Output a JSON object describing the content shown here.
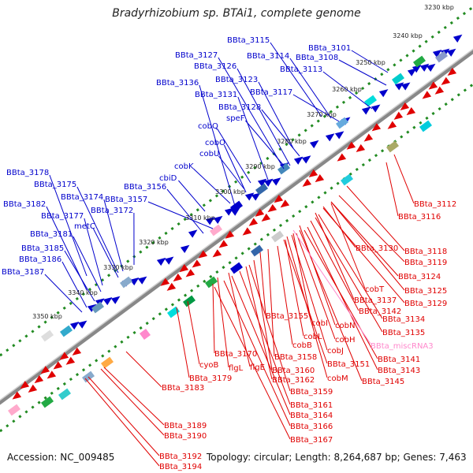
{
  "title": "Bradyrhizobium sp. BTAi1, complete genome",
  "footer": {
    "accession": "Accession: NC_009485",
    "summary": "Topology: circular; Length: 8,264,687 bp; Genes: 7,463"
  },
  "colors": {
    "forward": "#0000cc",
    "reverse": "#e00000",
    "misc_rna": "#ff88cc",
    "track_dots": "#228b22",
    "backbone": "#888888"
  },
  "ticks": [
    {
      "label": "3230 kbp"
    },
    {
      "label": "3240 kbp"
    },
    {
      "label": "3250 kbp"
    },
    {
      "label": "3260 kbp"
    },
    {
      "label": "3270 kbp"
    },
    {
      "label": "3280 kbp"
    },
    {
      "label": "3290 kbp"
    },
    {
      "label": "3300 kbp"
    },
    {
      "label": "3310 kbp"
    },
    {
      "label": "3320 kbp"
    },
    {
      "label": "3330 kbp"
    },
    {
      "label": "3340 kbp"
    },
    {
      "label": "3350 kbp"
    }
  ],
  "forward_genes": [
    {
      "label": "BBta_3115"
    },
    {
      "label": "BBta_3101"
    },
    {
      "label": "BBta_3127"
    },
    {
      "label": "BBta_3114"
    },
    {
      "label": "BBta_3108"
    },
    {
      "label": "BBta_3126"
    },
    {
      "label": "BBta_3113"
    },
    {
      "label": "BBta_3123"
    },
    {
      "label": "BBta_3136"
    },
    {
      "label": "BBta_3117"
    },
    {
      "label": "BBta_3131"
    },
    {
      "label": "BBta_3128"
    },
    {
      "label": "speF"
    },
    {
      "label": "cobQ"
    },
    {
      "label": "cobO"
    },
    {
      "label": "cobU"
    },
    {
      "label": "cobK"
    },
    {
      "label": "cbiD"
    },
    {
      "label": "BBta_3178"
    },
    {
      "label": "BBta_3156"
    },
    {
      "label": "BBta_3175"
    },
    {
      "label": "BBta_3174"
    },
    {
      "label": "BBta_3157"
    },
    {
      "label": "BBta_3182"
    },
    {
      "label": "BBta_3172"
    },
    {
      "label": "BBta_3177"
    },
    {
      "label": "metC"
    },
    {
      "label": "BBta_3181"
    },
    {
      "label": "BBta_3185"
    },
    {
      "label": "BBta_3186"
    },
    {
      "label": "BBta_3187"
    }
  ],
  "reverse_genes": [
    {
      "label": "BBta_3112"
    },
    {
      "label": "BBta_3116"
    },
    {
      "label": "BBta_3118"
    },
    {
      "label": "BBta_3130"
    },
    {
      "label": "BBta_3119"
    },
    {
      "label": "BBta_3124"
    },
    {
      "label": "cobT"
    },
    {
      "label": "BBta_3125"
    },
    {
      "label": "BBta_3137"
    },
    {
      "label": "BBta_3129"
    },
    {
      "label": "BBta_3142"
    },
    {
      "label": "BBta_3134"
    },
    {
      "label": "BBta_3155"
    },
    {
      "label": "cobI"
    },
    {
      "label": "cobN"
    },
    {
      "label": "BBta_3135"
    },
    {
      "label": "cobL"
    },
    {
      "label": "cobH"
    },
    {
      "label": "cobB"
    },
    {
      "label": "cobJ"
    },
    {
      "label": "BBta_3158"
    },
    {
      "label": "BBta_3141"
    },
    {
      "label": "BBta_3170"
    },
    {
      "label": "BBta_3151"
    },
    {
      "label": "BBta_3143"
    },
    {
      "label": "cyoB"
    },
    {
      "label": "flgL"
    },
    {
      "label": "flgE"
    },
    {
      "label": "BBta_3160"
    },
    {
      "label": "BBta_3179"
    },
    {
      "label": "cobM"
    },
    {
      "label": "BBta_3162"
    },
    {
      "label": "BBta_3145"
    },
    {
      "label": "BBta_3183"
    },
    {
      "label": "BBta_3159"
    },
    {
      "label": "BBta_3161"
    },
    {
      "label": "BBta_3164"
    },
    {
      "label": "BBta_3166"
    },
    {
      "label": "BBta_3189"
    },
    {
      "label": "BBta_3190"
    },
    {
      "label": "BBta_3167"
    },
    {
      "label": "BBta_3192"
    },
    {
      "label": "BBta_3194"
    }
  ],
  "misc_rna_genes": [
    {
      "label": "BBta_miscRNA3"
    }
  ]
}
